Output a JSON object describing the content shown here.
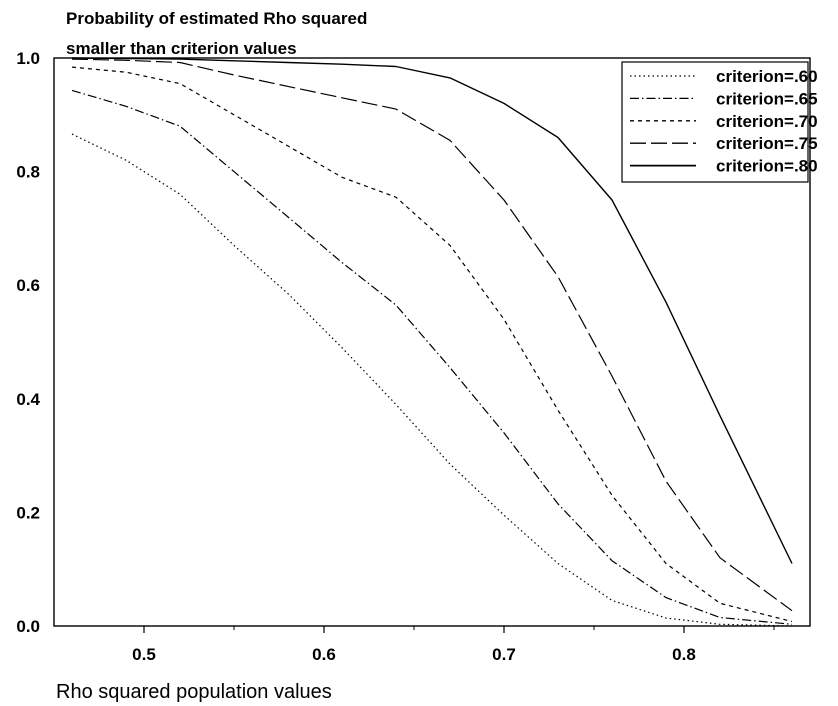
{
  "chart_data": {
    "type": "line",
    "title_lines": [
      "Probability of estimated Rho squared",
      "smaller than criterion values"
    ],
    "xlabel": "Rho squared population values",
    "ylabel": "",
    "xlim": [
      0.45,
      0.87
    ],
    "ylim": [
      0.0,
      1.0
    ],
    "xticks": [
      0.5,
      0.6,
      0.7,
      0.8
    ],
    "xticklabels": [
      "0.5",
      "0.6",
      "0.7",
      "0.8"
    ],
    "yticks": [
      0.0,
      0.2,
      0.4,
      0.6,
      0.8,
      1.0
    ],
    "yticklabels": [
      "0.0",
      "0.2",
      "0.4",
      "0.6",
      "0.8",
      "1.0"
    ],
    "grid": false,
    "legend_position": "top-right",
    "series": [
      {
        "name": "criterion=.60",
        "dash": "dotted",
        "x": [
          0.46,
          0.49,
          0.52,
          0.55,
          0.58,
          0.61,
          0.64,
          0.67,
          0.7,
          0.73,
          0.76,
          0.79,
          0.82,
          0.86
        ],
        "y": [
          0.866,
          0.82,
          0.76,
          0.67,
          0.585,
          0.49,
          0.39,
          0.285,
          0.195,
          0.11,
          0.045,
          0.014,
          0.003,
          0.0
        ]
      },
      {
        "name": "criterion=.65",
        "dash": "dashdot",
        "x": [
          0.46,
          0.49,
          0.52,
          0.55,
          0.58,
          0.61,
          0.64,
          0.67,
          0.7,
          0.73,
          0.76,
          0.79,
          0.82,
          0.86
        ],
        "y": [
          0.943,
          0.915,
          0.88,
          0.8,
          0.72,
          0.64,
          0.565,
          0.455,
          0.34,
          0.215,
          0.115,
          0.05,
          0.015,
          0.003
        ]
      },
      {
        "name": "criterion=.70",
        "dash": "dashed",
        "x": [
          0.46,
          0.49,
          0.52,
          0.55,
          0.58,
          0.61,
          0.64,
          0.67,
          0.7,
          0.73,
          0.76,
          0.79,
          0.82,
          0.86
        ],
        "y": [
          0.984,
          0.975,
          0.955,
          0.9,
          0.845,
          0.79,
          0.755,
          0.67,
          0.54,
          0.38,
          0.23,
          0.11,
          0.04,
          0.008
        ]
      },
      {
        "name": "criterion=.75",
        "dash": "longdash",
        "x": [
          0.46,
          0.49,
          0.52,
          0.55,
          0.58,
          0.61,
          0.64,
          0.67,
          0.7,
          0.73,
          0.76,
          0.79,
          0.82,
          0.86
        ],
        "y": [
          0.998,
          0.996,
          0.992,
          0.97,
          0.95,
          0.93,
          0.91,
          0.855,
          0.75,
          0.615,
          0.44,
          0.255,
          0.12,
          0.027
        ]
      },
      {
        "name": "criterion=.80",
        "dash": "solid",
        "x": [
          0.46,
          0.49,
          0.52,
          0.55,
          0.58,
          0.61,
          0.64,
          0.67,
          0.7,
          0.73,
          0.76,
          0.79,
          0.82,
          0.86
        ],
        "y": [
          1.0,
          0.999,
          0.998,
          0.995,
          0.992,
          0.989,
          0.985,
          0.965,
          0.92,
          0.86,
          0.75,
          0.57,
          0.37,
          0.11
        ]
      }
    ]
  }
}
